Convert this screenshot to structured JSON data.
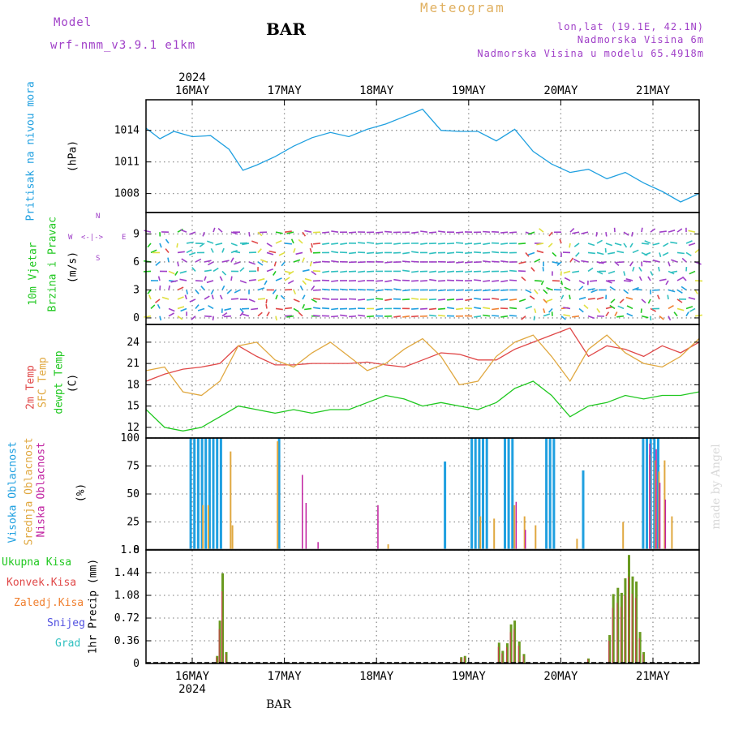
{
  "header": {
    "model_label": "Model",
    "model_name": "wrf-nmm_v3.9.1 e1km",
    "station": "BAR",
    "title": "Meteogram",
    "coords": "lon,lat (19.1E, 42.1N)",
    "elevation": "Nadmorska Visina 6m",
    "model_elevation": "Nadmorska Visina u modelu 65.4918m",
    "footer_station": "BAR",
    "watermark": "made by Angel"
  },
  "x_axis": {
    "year": "2024",
    "dates": [
      "16MAY",
      "17MAY",
      "18MAY",
      "19MAY",
      "20MAY",
      "21MAY"
    ]
  },
  "panels": {
    "pressure": {
      "label": "Pritisak na nivou mora",
      "unit": "(hPa)",
      "color": "#20a0e0",
      "ticks": [
        "1014",
        "1011",
        "1008"
      ]
    },
    "wind": {
      "label1": "10m Vjetar",
      "label2": "Brzina i Pravac",
      "unit": "(m/s)",
      "ticks": [
        "9",
        "6",
        "3",
        "0"
      ],
      "compass_n": "N",
      "compass_s": "S",
      "compass_w": "W",
      "compass_e": "E"
    },
    "temperature": {
      "label_2m": "2m Temp",
      "label_sfc": "SFC Temp",
      "label_dew": "dewpt Temp",
      "unit": "(C)",
      "ticks": [
        "24",
        "21",
        "18",
        "15",
        "12"
      ],
      "colors": {
        "t2m": "#e04848",
        "sfc": "#e0a840",
        "dew": "#20c820"
      }
    },
    "cloud": {
      "label_high": "Visoka Oblacnost",
      "label_mid": "Srednja Oblacnost",
      "label_low": "Niska Oblacnost",
      "unit": "(%)",
      "ticks": [
        "100",
        "75",
        "50",
        "25",
        "0"
      ],
      "colors": {
        "high": "#20a0e0",
        "mid": "#e0a840",
        "low": "#c020a0"
      }
    },
    "precip": {
      "legend": [
        "Ukupna Kisa",
        "Konvek.Kisa",
        "Zaledj.Kisa",
        "Snijeg",
        "Grad"
      ],
      "legend_colors": [
        "#20c820",
        "#e04848",
        "#f08030",
        "#5050e0",
        "#30c0c0"
      ],
      "unit": "1hr Precip (mm)",
      "ticks": [
        "1.8",
        "1.44",
        "1.08",
        "0.72",
        "0.36",
        "0"
      ]
    }
  },
  "chart_data": [
    {
      "type": "line",
      "name": "pressure",
      "x_days_from_16may": [
        -0.5,
        -0.35,
        -0.2,
        0.0,
        0.2,
        0.4,
        0.55,
        0.7,
        0.9,
        1.1,
        1.3,
        1.5,
        1.7,
        1.9,
        2.1,
        2.3,
        2.5,
        2.7,
        2.9,
        3.1,
        3.3,
        3.5,
        3.7,
        3.9,
        4.1,
        4.3,
        4.5,
        4.7,
        4.9,
        5.1,
        5.3,
        5.5
      ],
      "values": [
        1014.2,
        1013.2,
        1013.9,
        1013.4,
        1013.5,
        1012.2,
        1010.2,
        1010.7,
        1011.5,
        1012.5,
        1013.3,
        1013.8,
        1013.4,
        1014.1,
        1014.6,
        1015.3,
        1016.0,
        1014.0,
        1013.9,
        1013.9,
        1013.0,
        1014.1,
        1012.0,
        1010.8,
        1010.0,
        1010.3,
        1009.4,
        1010.0,
        1009.0,
        1008.2,
        1007.2,
        1008.0
      ],
      "ylim": [
        1006.2,
        1016.9
      ]
    },
    {
      "type": "line",
      "name": "temperature",
      "x_days_from_16may": [
        -0.5,
        -0.3,
        -0.1,
        0.1,
        0.3,
        0.5,
        0.7,
        0.9,
        1.1,
        1.3,
        1.5,
        1.7,
        1.9,
        2.1,
        2.3,
        2.5,
        2.7,
        2.9,
        3.1,
        3.3,
        3.5,
        3.7,
        3.9,
        4.1,
        4.3,
        4.5,
        4.7,
        4.9,
        5.1,
        5.3,
        5.5
      ],
      "series": [
        {
          "name": "2m Temp",
          "values": [
            18.5,
            19.5,
            20.2,
            20.5,
            21.0,
            23.5,
            22.0,
            20.8,
            20.8,
            21.0,
            21.0,
            21.0,
            21.2,
            20.8,
            20.5,
            21.5,
            22.5,
            22.3,
            21.5,
            21.5,
            23.0,
            24.0,
            25.0,
            26.0,
            22.0,
            23.5,
            23.0,
            22.0,
            23.5,
            22.5,
            24.0
          ]
        },
        {
          "name": "SFC Temp",
          "values": [
            20.0,
            20.5,
            17.0,
            16.5,
            18.5,
            23.5,
            24.0,
            21.5,
            20.5,
            22.5,
            24.0,
            22.0,
            20.0,
            21.0,
            23.0,
            24.5,
            22.0,
            18.0,
            18.5,
            22.0,
            24.0,
            25.0,
            22.0,
            18.5,
            23.0,
            25.0,
            22.5,
            21.0,
            20.5,
            22.0,
            24.5
          ]
        },
        {
          "name": "dewpt Temp",
          "values": [
            14.5,
            12.0,
            11.5,
            12.0,
            13.5,
            15.0,
            14.5,
            14.0,
            14.5,
            14.0,
            14.5,
            14.5,
            15.5,
            16.5,
            16.0,
            15.0,
            15.5,
            15.0,
            14.5,
            15.5,
            17.5,
            18.5,
            16.5,
            13.5,
            15.0,
            15.5,
            16.5,
            16.0,
            16.5,
            16.5,
            17.0
          ]
        }
      ],
      "ylim": [
        10.5,
        26.5
      ]
    },
    {
      "type": "bar",
      "name": "cloud_high",
      "groups": [
        {
          "start": -0.03,
          "end": 0.33,
          "value": 100
        },
        {
          "start": 0.93,
          "end": 0.97,
          "value": 100
        },
        {
          "start": 2.73,
          "end": 2.75,
          "value": 79
        },
        {
          "start": 3.02,
          "end": 3.2,
          "value": 100
        },
        {
          "start": 3.38,
          "end": 3.5,
          "value": 100
        },
        {
          "start": 3.83,
          "end": 3.95,
          "value": 100
        },
        {
          "start": 4.23,
          "end": 4.25,
          "value": 71
        },
        {
          "start": 4.88,
          "end": 5.05,
          "value": 100
        }
      ],
      "ylim": [
        0,
        100
      ]
    },
    {
      "type": "bar",
      "name": "precip_total",
      "x_days_from_16may": [
        0.27,
        0.3,
        0.33,
        0.37,
        2.92,
        2.96,
        3.33,
        3.37,
        3.42,
        3.46,
        3.5,
        3.55,
        3.6,
        4.3,
        4.53,
        4.57,
        4.62,
        4.66,
        4.7,
        4.74,
        4.78,
        4.82,
        4.86,
        4.9
      ],
      "values": [
        0.12,
        0.68,
        1.43,
        0.18,
        0.1,
        0.12,
        0.33,
        0.2,
        0.32,
        0.62,
        0.68,
        0.35,
        0.15,
        0.08,
        0.45,
        1.1,
        1.2,
        1.12,
        1.35,
        1.72,
        1.38,
        1.3,
        0.5,
        0.18
      ],
      "ylim": [
        0,
        1.8
      ]
    }
  ]
}
